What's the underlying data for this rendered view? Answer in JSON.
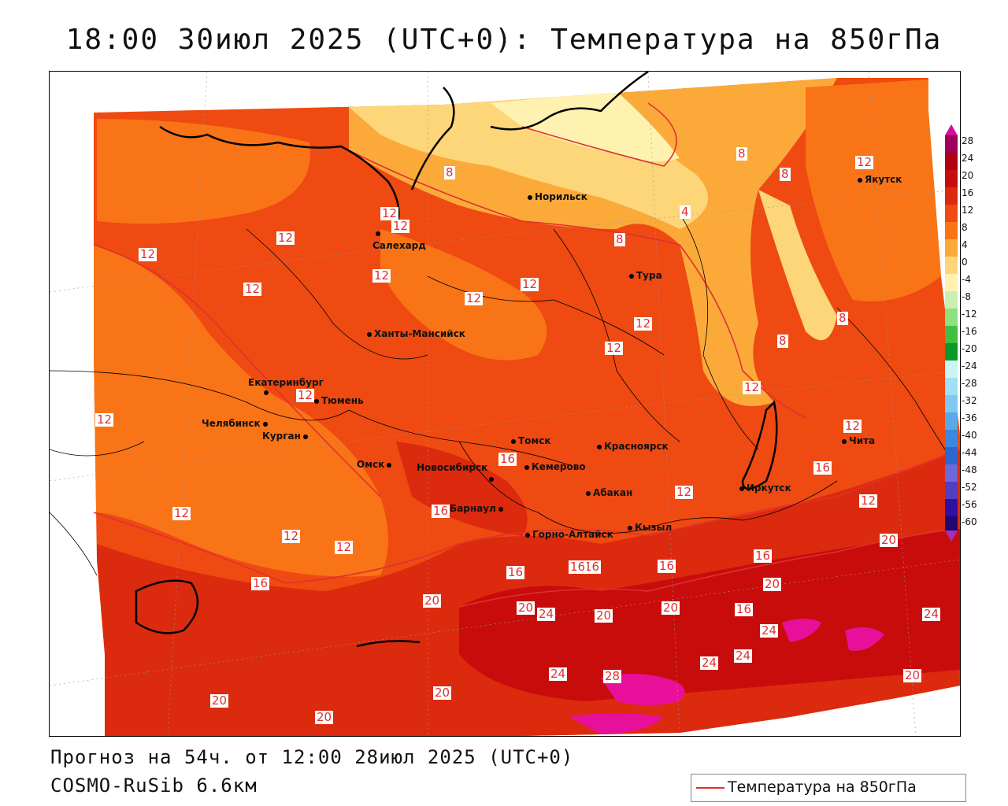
{
  "title": "18:00 30июл 2025 (UTC+0): Температура на 850гПа",
  "forecast_info": "Прогноз на 54ч. от 12:00 28июл 2025 (UTC+0)",
  "model": "COSMO-RuSib 6.6км",
  "legend_label": "Температура на 850гПа",
  "colors": {
    "contour_line": "#e03030",
    "c_28": "#e8109a",
    "c_24": "#c80c0c",
    "c_20": "#dc2a0e",
    "c_16": "#ee4a12",
    "c_12": "#f97416",
    "c_8": "#fbaa3a",
    "c_4": "#fdd67a",
    "c_0": "#fff2b0"
  },
  "colorbar_ticks": [
    "28",
    "24",
    "20",
    "16",
    "12",
    "8",
    "4",
    "0",
    "-4",
    "-8",
    "-12",
    "-16",
    "-20",
    "-24",
    "-28",
    "-32",
    "-36",
    "-40",
    "-44",
    "-48",
    "-52",
    "-56",
    "-60"
  ],
  "cities": [
    {
      "name": "Якутск"
    },
    {
      "name": "Норильск"
    },
    {
      "name": "Салехард"
    },
    {
      "name": "Тура"
    },
    {
      "name": "Ханты-Мансийск"
    },
    {
      "name": "Екатеринбург"
    },
    {
      "name": "Тюмень"
    },
    {
      "name": "Челябинск"
    },
    {
      "name": "Курган"
    },
    {
      "name": "Омск"
    },
    {
      "name": "Новосибирск"
    },
    {
      "name": "Томск"
    },
    {
      "name": "Кемерово"
    },
    {
      "name": "Красноярск"
    },
    {
      "name": "Абакан"
    },
    {
      "name": "Барнаул"
    },
    {
      "name": "Горно-Алтайск"
    },
    {
      "name": "Кызыл"
    },
    {
      "name": "Иркутск"
    },
    {
      "name": "Чита"
    }
  ],
  "contour_labels": [
    "12",
    "12",
    "12",
    "12",
    "12",
    "8",
    "8",
    "8",
    "12",
    "4",
    "8",
    "12",
    "12",
    "12",
    "12",
    "12",
    "12",
    "8",
    "8",
    "12",
    "12",
    "12",
    "12",
    "16",
    "16",
    "12",
    "16",
    "12",
    "12",
    "12",
    "16",
    "12",
    "16",
    "20",
    "16",
    "20",
    "20",
    "20",
    "24",
    "16",
    "24",
    "20",
    "24",
    "20",
    "24",
    "24",
    "24",
    "28",
    "20",
    "20",
    "20",
    "16",
    "16",
    "16",
    "20"
  ]
}
